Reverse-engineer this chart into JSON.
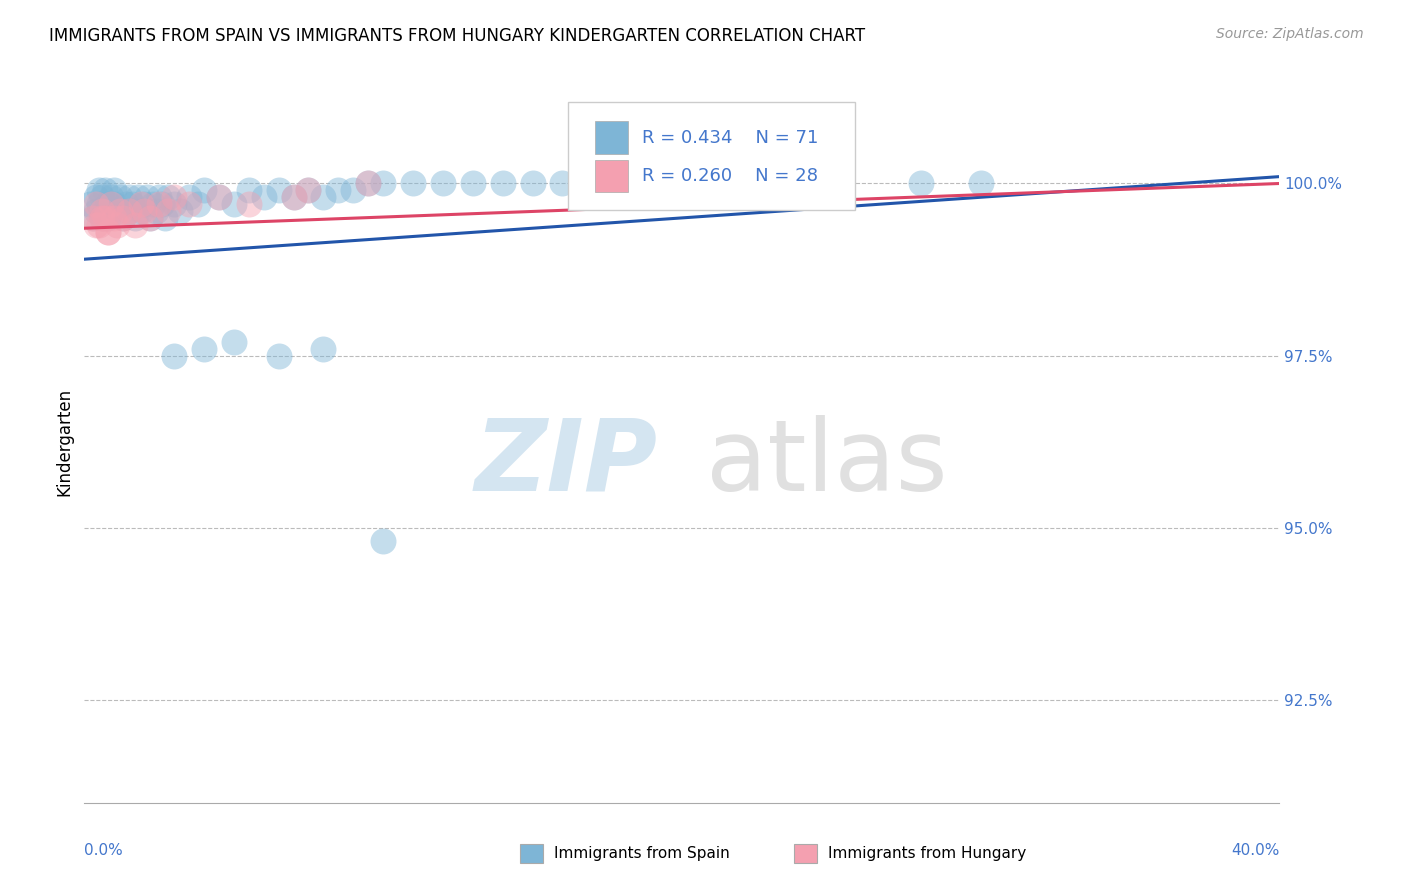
{
  "title": "IMMIGRANTS FROM SPAIN VS IMMIGRANTS FROM HUNGARY KINDERGARTEN CORRELATION CHART",
  "source": "Source: ZipAtlas.com",
  "ylabel": "Kindergarten",
  "yticks": [
    "92.5%",
    "95.0%",
    "97.5%",
    "100.0%"
  ],
  "ytick_vals": [
    92.5,
    95.0,
    97.5,
    100.0
  ],
  "xmin": 0.0,
  "xmax": 40.0,
  "ymin": 91.0,
  "ymax": 101.5,
  "legend_r_spain": "R = 0.434",
  "legend_n_spain": "N = 71",
  "legend_r_hungary": "R = 0.260",
  "legend_n_hungary": "N = 28",
  "color_spain": "#7EB5D6",
  "color_hungary": "#F4A0B0",
  "color_trendline_spain": "#2255AA",
  "color_trendline_hungary": "#DD4466",
  "spain_x": [
    0.2,
    0.3,
    0.4,
    0.4,
    0.5,
    0.5,
    0.6,
    0.6,
    0.7,
    0.7,
    0.8,
    0.8,
    0.9,
    0.9,
    1.0,
    1.0,
    1.1,
    1.2,
    1.3,
    1.4,
    1.5,
    1.5,
    1.6,
    1.7,
    1.8,
    1.9,
    2.0,
    2.1,
    2.2,
    2.3,
    2.4,
    2.5,
    2.6,
    2.7,
    2.8,
    3.0,
    3.2,
    3.5,
    3.8,
    4.0,
    4.5,
    5.0,
    5.5,
    6.0,
    6.5,
    7.0,
    7.5,
    8.0,
    8.5,
    9.0,
    9.5,
    10.0,
    11.0,
    12.0,
    13.0,
    14.0,
    15.0,
    16.0,
    17.0,
    18.0,
    20.0,
    22.0,
    25.0,
    28.0,
    30.0,
    3.0,
    4.0,
    5.0,
    6.5,
    8.0,
    10.0
  ],
  "spain_y": [
    99.7,
    99.5,
    99.8,
    99.6,
    99.9,
    99.7,
    99.8,
    99.5,
    99.9,
    99.6,
    99.7,
    99.5,
    99.8,
    99.6,
    99.7,
    99.9,
    99.6,
    99.8,
    99.5,
    99.7,
    99.8,
    99.6,
    99.7,
    99.5,
    99.8,
    99.6,
    99.7,
    99.8,
    99.5,
    99.7,
    99.6,
    99.8,
    99.7,
    99.5,
    99.8,
    99.7,
    99.6,
    99.8,
    99.7,
    99.9,
    99.8,
    99.7,
    99.9,
    99.8,
    99.9,
    99.8,
    99.9,
    99.8,
    99.9,
    99.9,
    100.0,
    100.0,
    100.0,
    100.0,
    100.0,
    100.0,
    100.0,
    100.0,
    100.0,
    100.0,
    100.0,
    100.0,
    100.0,
    100.0,
    100.0,
    97.5,
    97.6,
    97.7,
    97.5,
    97.6,
    94.8
  ],
  "hungary_x": [
    0.3,
    0.4,
    0.5,
    0.6,
    0.7,
    0.8,
    0.9,
    1.0,
    1.1,
    1.2,
    1.3,
    1.5,
    1.7,
    1.9,
    2.0,
    2.2,
    2.5,
    2.8,
    3.0,
    3.5,
    4.5,
    5.5,
    7.0,
    7.5,
    9.5,
    0.4,
    0.6,
    0.8
  ],
  "hungary_y": [
    99.5,
    99.7,
    99.4,
    99.6,
    99.5,
    99.3,
    99.7,
    99.5,
    99.4,
    99.6,
    99.5,
    99.6,
    99.4,
    99.7,
    99.6,
    99.5,
    99.7,
    99.6,
    99.8,
    99.7,
    99.8,
    99.7,
    99.8,
    99.9,
    100.0,
    99.4,
    99.5,
    99.3
  ],
  "trendline_spain_x0": 0.0,
  "trendline_spain_x1": 40.0,
  "trendline_spain_y0": 98.9,
  "trendline_spain_y1": 100.1,
  "trendline_hungary_x0": 0.0,
  "trendline_hungary_x1": 40.0,
  "trendline_hungary_y0": 99.35,
  "trendline_hungary_y1": 100.0
}
